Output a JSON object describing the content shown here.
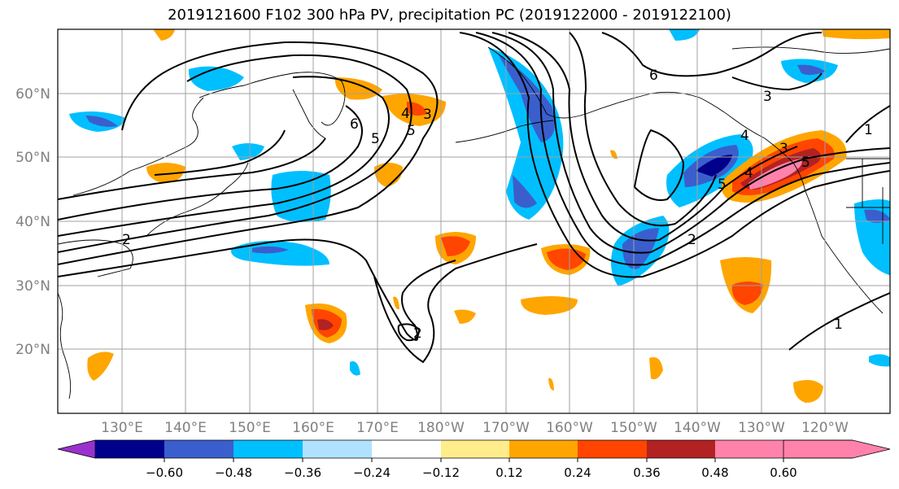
{
  "title": "2019121600 F102 300 hPa PV, precipitation PC (2019122000 - 2019122100)",
  "map": {
    "lat_labels": [
      "60°N",
      "50°N",
      "40°N",
      "30°N",
      "20°N"
    ],
    "lon_labels": [
      "130°E",
      "140°E",
      "150°E",
      "160°E",
      "170°E",
      "180°W",
      "170°W",
      "160°W",
      "150°W",
      "140°W",
      "130°W",
      "120°W"
    ],
    "contour_labels": [
      "5",
      "6",
      "5",
      "4",
      "3",
      "2",
      "2",
      "6",
      "3",
      "4",
      "3",
      "5",
      "4",
      "5",
      "2",
      "1",
      "1"
    ]
  },
  "colorbar": {
    "colors": [
      "#9932cc",
      "#00008b",
      "#3a5fcd",
      "#00bfff",
      "#b0e2ff",
      "#ffffff",
      "#ffec8b",
      "#ffa500",
      "#ff4500",
      "#b22222",
      "#ff82ab"
    ],
    "tick_labels": [
      "−0.60",
      "−0.48",
      "−0.36",
      "−0.24",
      "−0.12",
      "0.12",
      "0.24",
      "0.36",
      "0.48",
      "0.60"
    ]
  }
}
